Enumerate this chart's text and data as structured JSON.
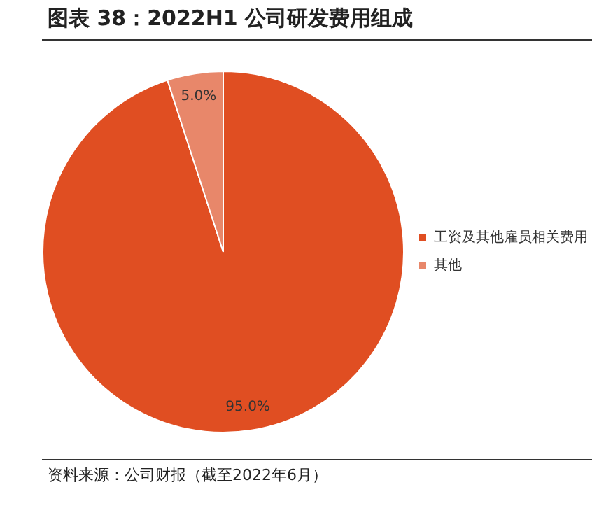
{
  "chart_data": {
    "type": "pie",
    "title": "图表 38：2022H1 公司研发费用组成",
    "categories": [
      "工资及其他雇员相关费用",
      "其他"
    ],
    "values": [
      95.0,
      5.0
    ],
    "colors": [
      "#e04e22",
      "#e8876a"
    ],
    "value_labels": [
      "95.0%",
      "5.0%"
    ],
    "legend": "right",
    "annotations": [
      "资料来源：公司财报（截至2022年6月）"
    ]
  }
}
